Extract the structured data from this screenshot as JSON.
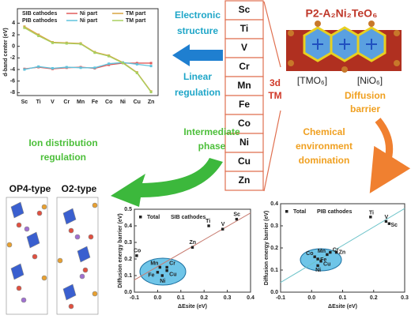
{
  "chart_data": [
    {
      "type": "line",
      "ylabel": "d-band center (eV)",
      "categories": [
        "Sc",
        "Ti",
        "V",
        "Cr",
        "Mn",
        "Fe",
        "Co",
        "Ni",
        "Cu",
        "Zn"
      ],
      "ylim": [
        -8.5,
        6.5
      ],
      "yticks": [
        -8,
        -6,
        -4,
        -2,
        0,
        2,
        4
      ],
      "series_groups": [
        {
          "name": "SIB cathodes",
          "series": [
            {
              "name": "Ni part",
              "color": "#e05a5a",
              "values": [
                -3.9,
                -3.6,
                -3.9,
                -3.7,
                -3.6,
                -3.8,
                -3.2,
                -2.9,
                -2.9,
                -2.9
              ]
            },
            {
              "name": "TM part",
              "color": "#d9a441",
              "values": [
                3.4,
                2.0,
                0.7,
                0.6,
                0.5,
                -1.0,
                -1.6,
                -2.8,
                -4.5,
                -7.8
              ]
            }
          ]
        },
        {
          "name": "PIB cathodes",
          "series": [
            {
              "name": "Ni part",
              "color": "#5fc3dc",
              "values": [
                -4.0,
                -3.5,
                -3.8,
                -3.6,
                -3.7,
                -3.7,
                -3.0,
                -2.8,
                -3.1,
                -3.4
              ]
            },
            {
              "name": "TM part",
              "color": "#a8cf5f",
              "values": [
                3.2,
                1.8,
                0.6,
                0.5,
                0.4,
                -1.1,
                -1.7,
                -2.9,
                -4.6,
                -7.9
              ]
            }
          ]
        }
      ]
    },
    {
      "type": "scatter",
      "legend_title": "SIB cathodes",
      "xlabel": "ΔEsite (eV)",
      "ylabel": "Diffusion energy barrier (eV)",
      "xlim": [
        -0.1,
        0.4
      ],
      "xticks": [
        {
          "value": -0.1,
          "label": "-0.1"
        },
        {
          "value": 0,
          "label": "0.0"
        },
        0.1,
        0.2,
        0.3,
        0.4
      ],
      "ylim": [
        0,
        0.5
      ],
      "yticks": [
        {
          "value": 0,
          "label": "0.0"
        },
        0.1,
        0.2,
        0.3,
        0.4,
        0.5
      ],
      "fit_color": "#c77b70",
      "series": [
        {
          "name": "Total",
          "color": "#222222",
          "labels": [
            "Sc",
            "Ti",
            "V",
            "Cr",
            "Mn",
            "Fe",
            "Co",
            "Ni",
            "Cu",
            "Zn"
          ],
          "x": [
            0.34,
            0.22,
            0.28,
            0.04,
            0.01,
            0.0,
            -0.09,
            0.02,
            0.04,
            0.15
          ],
          "values": [
            0.44,
            0.4,
            0.38,
            0.15,
            0.15,
            0.12,
            0.22,
            0.1,
            0.13,
            0.27
          ]
        }
      ]
    },
    {
      "type": "scatter",
      "legend_title": "PIB cathodes",
      "xlabel": "ΔEsite (eV)",
      "ylabel": "Diffusion energy barrier (eV)",
      "xlim": [
        -0.1,
        0.3
      ],
      "xticks": [
        {
          "value": -0.1,
          "label": "-0.1"
        },
        {
          "value": 0,
          "label": "0.0"
        },
        0.1,
        0.2,
        0.3
      ],
      "ylim": [
        0,
        0.4
      ],
      "yticks": [
        {
          "value": 0,
          "label": "0.0"
        },
        0.1,
        0.2,
        0.3,
        0.4
      ],
      "fit_color": "#6cc3c9",
      "series": [
        {
          "name": "Total",
          "color": "#222222",
          "labels": [
            "Sc",
            "Ti",
            "V",
            "Cr",
            "Mn",
            "Fe",
            "Co",
            "Ni",
            "Cu",
            "Zn"
          ],
          "x": [
            0.25,
            0.19,
            0.24,
            0.06,
            0.05,
            0.02,
            0.01,
            0.02,
            0.03,
            0.08
          ],
          "values": [
            0.31,
            0.34,
            0.32,
            0.18,
            0.17,
            0.15,
            0.16,
            0.12,
            0.14,
            0.18
          ]
        }
      ]
    }
  ],
  "diagram": {
    "electronic_structure": [
      "Electronic",
      "structure"
    ],
    "linear_regulation": [
      "Linear",
      "regulation"
    ],
    "elements": [
      "Sc",
      "Ti",
      "V",
      "Cr",
      "Mn",
      "Fe",
      "Co",
      "Ni",
      "Cu",
      "Zn"
    ],
    "tm_label": [
      "3d",
      "TM"
    ],
    "compound": "P2-A₂Ni₂TeO₆",
    "tmo6": "[TMO₆]",
    "nio6": "[NiO₆]",
    "diffusion_barrier": [
      "Diffusion",
      "barrier"
    ],
    "chemical_environment": [
      "Chemical",
      "environment",
      "domination"
    ],
    "intermediate_phase": [
      "Intermediate",
      "phase"
    ],
    "ion_distribution": [
      "Ion distribution",
      "regulation"
    ],
    "op4": "OP4-type",
    "o2": "O2-type"
  }
}
